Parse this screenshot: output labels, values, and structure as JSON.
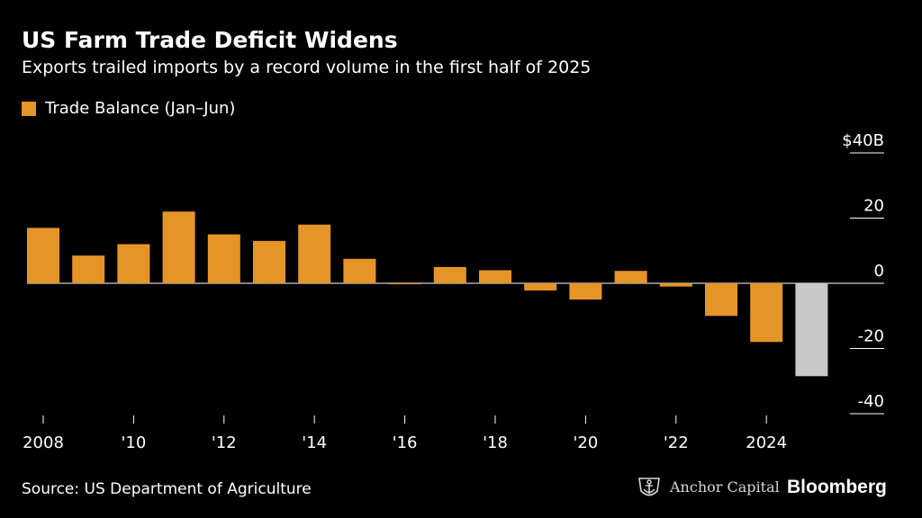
{
  "header": {
    "title": "US Farm Trade Deficit Widens",
    "subtitle": "Exports trailed imports by a record volume in the first half of 2025"
  },
  "legend": {
    "label": "Trade Balance (Jan–Jun)"
  },
  "colors": {
    "bar": "#e59527",
    "highlight": "#c8c8c8",
    "background": "#000000",
    "text": "#ffffff",
    "tick": "#ffffff"
  },
  "chart_data": {
    "type": "bar",
    "title": "US Farm Trade Deficit Widens",
    "series_name": "Trade Balance (Jan–Jun)",
    "categories": [
      2008,
      2009,
      2010,
      2011,
      2012,
      2013,
      2014,
      2015,
      2016,
      2017,
      2018,
      2019,
      2020,
      2021,
      2022,
      2023,
      2024,
      2025
    ],
    "values": [
      17,
      8.5,
      12,
      22,
      15,
      13,
      18,
      7.5,
      -0.3,
      5,
      4,
      -2.2,
      -5,
      3.8,
      -1,
      -10,
      -18,
      -28.5
    ],
    "highlight_index": 17,
    "xtick_labels": [
      {
        "year": 2008,
        "label": "2008"
      },
      {
        "year": 2010,
        "label": "'10"
      },
      {
        "year": 2012,
        "label": "'12"
      },
      {
        "year": 2014,
        "label": "'14"
      },
      {
        "year": 2016,
        "label": "'16"
      },
      {
        "year": 2018,
        "label": "'18"
      },
      {
        "year": 2020,
        "label": "'20"
      },
      {
        "year": 2022,
        "label": "'22"
      },
      {
        "year": 2024,
        "label": "2024"
      }
    ],
    "ytick_labels": [
      {
        "value": 40,
        "label": "$40B"
      },
      {
        "value": 20,
        "label": "20"
      },
      {
        "value": 0,
        "label": "0"
      },
      {
        "value": -20,
        "label": "-20"
      },
      {
        "value": -40,
        "label": "-40"
      }
    ],
    "ylim": [
      -40,
      40
    ],
    "xlabel": "",
    "ylabel": "$B",
    "legend_position": "top-left"
  },
  "footer": {
    "source": "Source: US Department of Agriculture",
    "partner": "Anchor Capital",
    "brand": "Bloomberg"
  }
}
